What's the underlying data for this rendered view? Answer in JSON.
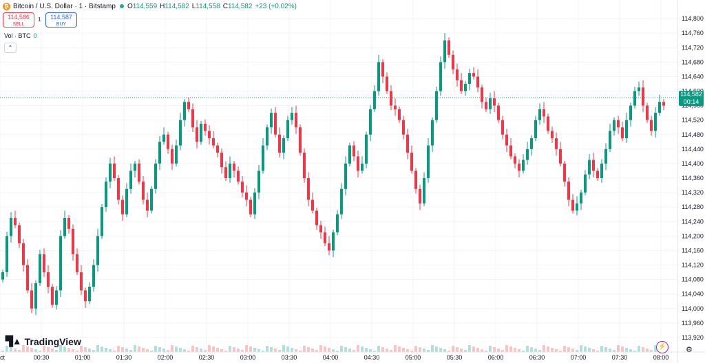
{
  "header": {
    "coin_icon": "bitcoin-icon",
    "title": "Bitcoin / U.S. Dollar · 1 · Bitstamp",
    "open_label": "O",
    "open": "114,559",
    "high_label": "H",
    "high": "114,582",
    "low_label": "L",
    "low": "114,558",
    "close_label": "C",
    "close": "114,582",
    "change": "+23 (+0.02%)"
  },
  "trade": {
    "sell_price": "114,586",
    "sell_label": "SELL",
    "spread": "1",
    "buy_price": "114,587",
    "buy_label": "BUY"
  },
  "volume": {
    "label": "Vol · BTC",
    "value": "0"
  },
  "brand": {
    "name": "TradingView"
  },
  "price_label": {
    "price": "114,582",
    "countdown": "00:14"
  },
  "colors": {
    "up": "#089981",
    "down": "#f23645",
    "grid": "#f0f3fa",
    "vol_up": "#b2dfdb",
    "vol_down": "#f7c4c8"
  },
  "chart_data": {
    "type": "candlestick",
    "title": "Bitcoin / U.S. Dollar · 1 · Bitstamp",
    "ylim": [
      113880,
      114840
    ],
    "y_ticks": [
      113920,
      113960,
      114000,
      114040,
      114080,
      114120,
      114160,
      114200,
      114240,
      114280,
      114320,
      114360,
      114400,
      114440,
      114480,
      114520,
      114560,
      114600,
      114640,
      114680,
      114720,
      114760,
      114800
    ],
    "y_tick_labels": [
      "113,920",
      "113,960",
      "114,000",
      "114,040",
      "114,080",
      "114,120",
      "114,160",
      "114,200",
      "114,240",
      "114,280",
      "114,320",
      "114,360",
      "114,400",
      "114,440",
      "114,480",
      "114,520",
      "114,560",
      "114,600",
      "114,640",
      "114,680",
      "114,720",
      "114,760",
      "114,800"
    ],
    "x_tick_labels": [
      "ct",
      "00:30",
      "01:00",
      "01:30",
      "02:00",
      "02:30",
      "03:00",
      "03:30",
      "04:00",
      "04:30",
      "05:00",
      "05:30",
      "06:00",
      "06:30",
      "07:00",
      "07:30",
      "08:00"
    ],
    "x_tick_minutes": [
      0,
      30,
      60,
      90,
      120,
      150,
      180,
      210,
      240,
      270,
      300,
      330,
      360,
      390,
      420,
      450,
      480
    ],
    "last_price": 114582,
    "closes": [
      114100,
      114200,
      114250,
      114230,
      114180,
      114120,
      114050,
      114000,
      114070,
      114150,
      114100,
      114060,
      114010,
      114050,
      114200,
      114250,
      114220,
      114150,
      114100,
      114050,
      114020,
      114060,
      114120,
      114200,
      114280,
      114350,
      114400,
      114360,
      114300,
      114260,
      114330,
      114380,
      114400,
      114350,
      114300,
      114270,
      114330,
      114400,
      114460,
      114480,
      114440,
      114400,
      114450,
      114520,
      114570,
      114550,
      114500,
      114460,
      114510,
      114490,
      114470,
      114450,
      114430,
      114390,
      114360,
      114400,
      114380,
      114350,
      114320,
      114300,
      114260,
      114320,
      114380,
      114450,
      114500,
      114540,
      114480,
      114430,
      114470,
      114520,
      114540,
      114500,
      114430,
      114360,
      114300,
      114270,
      114230,
      114210,
      114180,
      114160,
      114210,
      114260,
      114330,
      114400,
      114450,
      114420,
      114380,
      114400,
      114480,
      114550,
      114600,
      114680,
      114640,
      114600,
      114560,
      114550,
      114520,
      114480,
      114430,
      114380,
      114330,
      114290,
      114360,
      114450,
      114520,
      114600,
      114680,
      114740,
      114700,
      114660,
      114630,
      114600,
      114620,
      114650,
      114640,
      114610,
      114570,
      114550,
      114580,
      114560,
      114520,
      114480,
      114450,
      114420,
      114400,
      114380,
      114410,
      114440,
      114470,
      114520,
      114550,
      114530,
      114490,
      114470,
      114440,
      114400,
      114350,
      114300,
      114270,
      114290,
      114320,
      114370,
      114410,
      114380,
      114360,
      114400,
      114440,
      114490,
      114520,
      114500,
      114470,
      114520,
      114560,
      114600,
      114610,
      114560,
      114520,
      114490,
      114540,
      114570,
      114560,
      114540,
      114530,
      114550,
      114570,
      114582
    ]
  }
}
